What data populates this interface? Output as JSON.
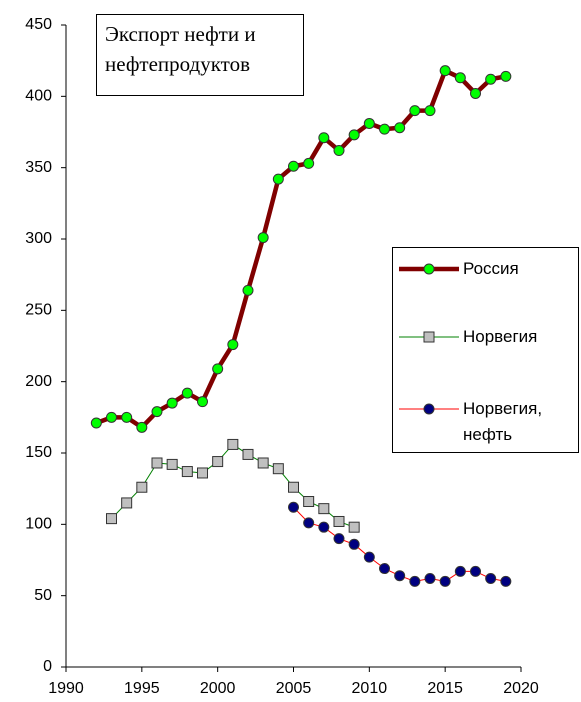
{
  "chart_data": {
    "type": "line",
    "title": "Экспорт нефти и нефтепродуктов",
    "xlim": [
      1990,
      2020
    ],
    "xticks": [
      1990,
      1995,
      2000,
      2005,
      2010,
      2015,
      2020
    ],
    "ylim": [
      0,
      450
    ],
    "yticks": [
      0,
      50,
      100,
      150,
      200,
      250,
      300,
      350,
      400,
      450
    ],
    "grid": false,
    "series": [
      {
        "name": "Россия",
        "color": "#800000",
        "marker": "circle",
        "marker_color": "#00ff00",
        "x": [
          1992,
          1993,
          1994,
          1995,
          1996,
          1997,
          1998,
          1999,
          2000,
          2001,
          2002,
          2003,
          2004,
          2005,
          2006,
          2007,
          2008,
          2009,
          2010,
          2011,
          2012,
          2013,
          2014,
          2015,
          2016,
          2017,
          2018,
          2019
        ],
        "values": [
          171,
          175,
          175,
          168,
          179,
          185,
          192,
          186,
          209,
          226,
          264,
          301,
          342,
          351,
          353,
          371,
          362,
          373,
          381,
          377,
          378,
          390,
          390,
          418,
          413,
          402,
          412,
          414
        ]
      },
      {
        "name": "Норвегия",
        "color": "#008000",
        "marker": "square",
        "marker_color": "#c0c0c0",
        "x": [
          1993,
          1994,
          1995,
          1996,
          1997,
          1998,
          1999,
          2000,
          2001,
          2002,
          2003,
          2004,
          2005,
          2006,
          2007,
          2008,
          2009
        ],
        "values": [
          104,
          115,
          126,
          143,
          142,
          137,
          136,
          144,
          156,
          149,
          143,
          139,
          126,
          116,
          111,
          102,
          98
        ]
      },
      {
        "name": "Норвегия, нефть",
        "color": "#ff0000",
        "marker": "circle",
        "marker_color": "#000080",
        "x": [
          2005,
          2006,
          2007,
          2008,
          2009,
          2010,
          2011,
          2012,
          2013,
          2014,
          2015,
          2016,
          2017,
          2018,
          2019
        ],
        "values": [
          112,
          101,
          98,
          90,
          86,
          77,
          69,
          64,
          60,
          62,
          60,
          67,
          67,
          62,
          60
        ]
      }
    ]
  }
}
